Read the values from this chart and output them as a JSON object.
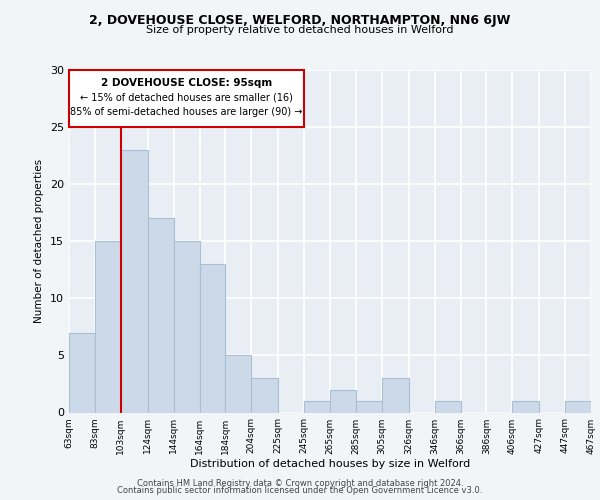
{
  "title": "2, DOVEHOUSE CLOSE, WELFORD, NORTHAMPTON, NN6 6JW",
  "subtitle": "Size of property relative to detached houses in Welford",
  "xlabel": "Distribution of detached houses by size in Welford",
  "ylabel": "Number of detached properties",
  "bar_color": "#ccd9e8",
  "bar_edge_color": "#aabfd4",
  "bins": [
    "63sqm",
    "83sqm",
    "103sqm",
    "124sqm",
    "144sqm",
    "164sqm",
    "184sqm",
    "204sqm",
    "225sqm",
    "245sqm",
    "265sqm",
    "285sqm",
    "305sqm",
    "326sqm",
    "346sqm",
    "366sqm",
    "386sqm",
    "406sqm",
    "427sqm",
    "447sqm",
    "467sqm"
  ],
  "values": [
    7,
    15,
    23,
    17,
    15,
    13,
    5,
    3,
    0,
    1,
    2,
    1,
    3,
    0,
    1,
    0,
    0,
    1,
    0,
    1
  ],
  "ylim": [
    0,
    30
  ],
  "yticks": [
    0,
    5,
    10,
    15,
    20,
    25,
    30
  ],
  "property_line_x": 103,
  "annotation_title": "2 DOVEHOUSE CLOSE: 95sqm",
  "annotation_line1": "← 15% of detached houses are smaller (16)",
  "annotation_line2": "85% of semi-detached houses are larger (90) →",
  "footer_line1": "Contains HM Land Registry data © Crown copyright and database right 2024.",
  "footer_line2": "Contains public sector information licensed under the Open Government Licence v3.0.",
  "background_color": "#f2f5f8",
  "plot_bg_color": "#e8eef4",
  "grid_color": "#ffffff",
  "annotation_box_color": "#ffffff",
  "annotation_box_edge": "#cc0000",
  "property_line_color": "#cc0000"
}
